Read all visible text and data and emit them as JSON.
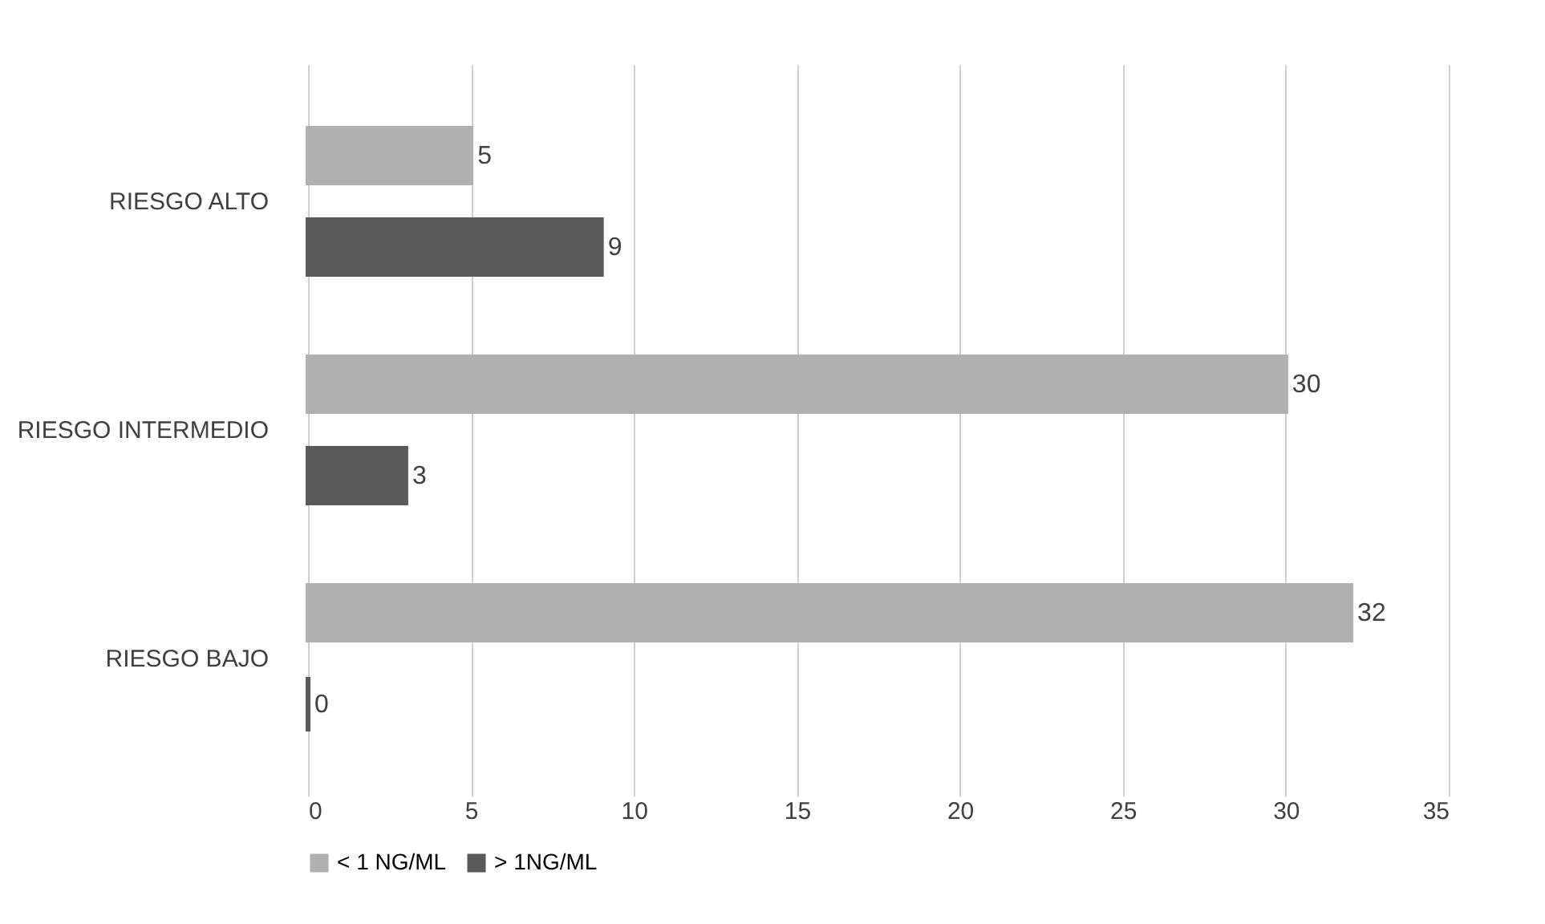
{
  "chart_data": {
    "type": "bar",
    "orientation": "horizontal",
    "categories": [
      "RIESGO ALTO",
      "RIESGO INTERMEDIO",
      "RIESGO BAJO"
    ],
    "series": [
      {
        "name": "< 1 NG/ML",
        "color": "#b0b0b0",
        "values": [
          5,
          30,
          32
        ]
      },
      {
        "name": "> 1NG/ML",
        "color": "#595959",
        "values": [
          9,
          3,
          0
        ]
      }
    ],
    "xlim": [
      0,
      35
    ],
    "xticks": [
      0,
      5,
      10,
      15,
      20,
      25,
      30,
      35
    ],
    "grid": "x",
    "legend": "bottom",
    "data_labels": true
  }
}
